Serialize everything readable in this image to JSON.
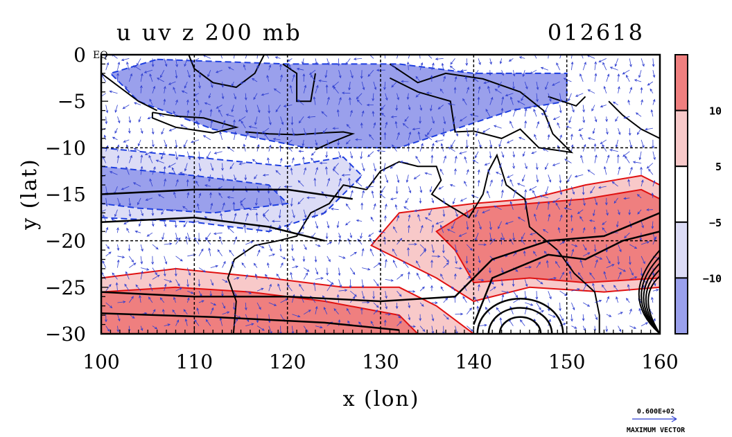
{
  "chart_data": {
    "type": "heatmap",
    "title": "u uv z 200 mb",
    "title_right": "012618",
    "xlabel": "x (lon)",
    "ylabel": "y (lat)",
    "xlim": [
      100,
      160
    ],
    "ylim": [
      -30,
      0
    ],
    "x_ticks": [
      "100",
      "110",
      "120",
      "130",
      "140",
      "150",
      "160"
    ],
    "y_ticks": [
      "0",
      "−5",
      "−10",
      "−15",
      "−20",
      "−25",
      "−30"
    ],
    "x_tick_values": [
      100,
      110,
      120,
      130,
      140,
      150,
      160
    ],
    "y_tick_values": [
      0,
      -5,
      -10,
      -15,
      -20,
      -25,
      -30
    ],
    "grid": true,
    "corner_label": "EQ",
    "colorbar": {
      "labels": [
        "10",
        "5",
        "−5",
        "−10"
      ],
      "label_values": [
        10,
        5,
        -5,
        -10
      ],
      "bins": [
        {
          "range": "> 10",
          "color": "#ef7f7f"
        },
        {
          "range": "5 to 10",
          "color": "#f8c9c9"
        },
        {
          "range": "-5 to 5",
          "color": "#ffffff"
        },
        {
          "range": "-10 to -5",
          "color": "#dcdcf6"
        },
        {
          "range": "< -10",
          "color": "#9aa0ec"
        }
      ]
    },
    "u_regions": [
      {
        "level": "negative_strong",
        "points": [
          [
            106,
            -0.5
          ],
          [
            120,
            -1
          ],
          [
            132,
            -1
          ],
          [
            140,
            -2
          ],
          [
            150,
            -2
          ],
          [
            150,
            -5
          ],
          [
            144,
            -6
          ],
          [
            138,
            -8
          ],
          [
            132,
            -10
          ],
          [
            122,
            -10
          ],
          [
            112,
            -8
          ],
          [
            104,
            -5
          ],
          [
            101,
            -2
          ]
        ]
      },
      {
        "level": "negative_weak",
        "points": [
          [
            100,
            -10
          ],
          [
            110,
            -11
          ],
          [
            120,
            -12
          ],
          [
            126,
            -11
          ],
          [
            128,
            -13
          ],
          [
            124,
            -17
          ],
          [
            118,
            -19
          ],
          [
            110,
            -18
          ],
          [
            100,
            -17.5
          ]
        ]
      },
      {
        "level": "negative_strong",
        "points": [
          [
            100,
            -12
          ],
          [
            110,
            -13
          ],
          [
            118,
            -14
          ],
          [
            120,
            -16
          ],
          [
            112,
            -17
          ],
          [
            104,
            -16.5
          ],
          [
            100,
            -16
          ]
        ]
      },
      {
        "level": "positive_weak",
        "points": [
          [
            100,
            -24
          ],
          [
            108,
            -23
          ],
          [
            118,
            -24
          ],
          [
            126,
            -25
          ],
          [
            132,
            -25
          ],
          [
            136,
            -27
          ],
          [
            140,
            -30
          ],
          [
            100,
            -30
          ]
        ]
      },
      {
        "level": "positive_strong",
        "points": [
          [
            100,
            -25.5
          ],
          [
            108,
            -25
          ],
          [
            116,
            -25.5
          ],
          [
            124,
            -26.5
          ],
          [
            132,
            -28
          ],
          [
            134,
            -30
          ],
          [
            100,
            -30
          ]
        ]
      },
      {
        "level": "positive_weak",
        "points": [
          [
            132,
            -17
          ],
          [
            140,
            -16
          ],
          [
            146,
            -15.5
          ],
          [
            152,
            -14
          ],
          [
            158,
            -13
          ],
          [
            160,
            -14
          ],
          [
            160,
            -25
          ],
          [
            154,
            -25.5
          ],
          [
            146,
            -25
          ],
          [
            140,
            -26.5
          ],
          [
            136,
            -24
          ],
          [
            132,
            -22
          ],
          [
            129,
            -20.5
          ]
        ]
      },
      {
        "level": "positive_strong",
        "points": [
          [
            140,
            -16.5
          ],
          [
            146,
            -16
          ],
          [
            152,
            -15.5
          ],
          [
            158,
            -14.5
          ],
          [
            160,
            -15.5
          ],
          [
            160,
            -24
          ],
          [
            152,
            -24.5
          ],
          [
            146,
            -24
          ],
          [
            140,
            -24.5
          ],
          [
            138,
            -21
          ],
          [
            136,
            -19
          ]
        ]
      }
    ],
    "z_isolines": [
      [
        [
          100,
          -15
        ],
        [
          110,
          -14.5
        ],
        [
          120,
          -14.5
        ],
        [
          127,
          -15.5
        ]
      ],
      [
        [
          100,
          -18
        ],
        [
          110,
          -17.5
        ],
        [
          118,
          -18.5
        ],
        [
          124,
          -20
        ]
      ],
      [
        [
          100,
          -25.5
        ],
        [
          110,
          -26
        ],
        [
          120,
          -26
        ],
        [
          130,
          -26.5
        ],
        [
          138,
          -26
        ]
      ],
      [
        [
          100,
          -27.8
        ],
        [
          112,
          -28.2
        ],
        [
          124,
          -28.8
        ],
        [
          132,
          -29.6
        ]
      ],
      [
        [
          138,
          -26
        ],
        [
          142,
          -22
        ],
        [
          148,
          -20
        ],
        [
          154,
          -19.5
        ],
        [
          160,
          -17
        ]
      ],
      [
        [
          140,
          -29
        ],
        [
          142,
          -24
        ],
        [
          148,
          -21.5
        ],
        [
          152,
          -22
        ],
        [
          156,
          -20
        ],
        [
          160,
          -19
        ]
      ]
    ],
    "vector_scale_label": "0.600E+02",
    "vector_caption": "MAXIMUM VECTOR"
  },
  "colors": {
    "axis": "#000000",
    "contour_negative": "#1f3fe0",
    "contour_positive": "#e01010",
    "vectors": "#2f3fd0",
    "coast": "#000000"
  }
}
